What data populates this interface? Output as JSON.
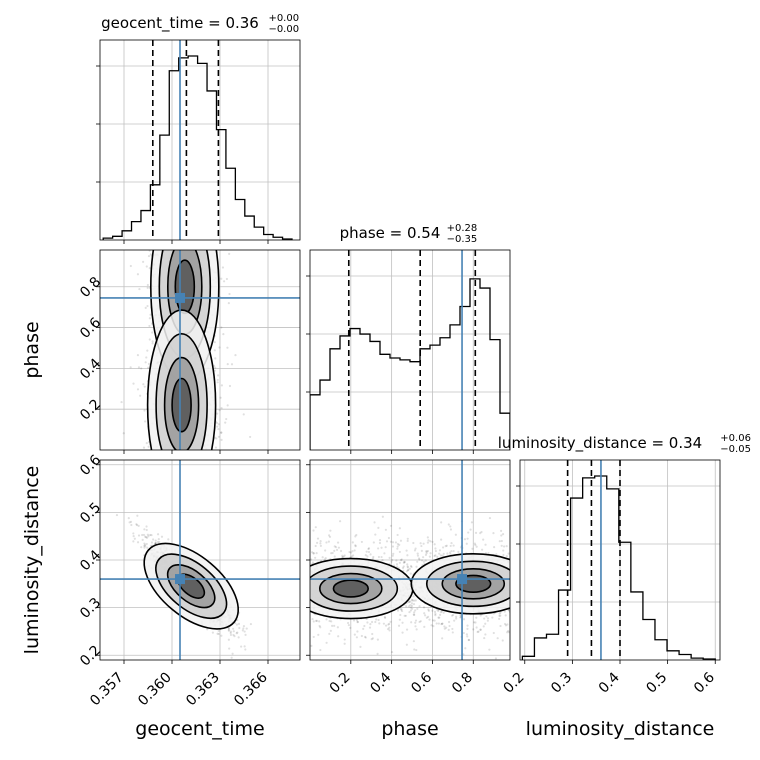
{
  "chart_data": {
    "type": "corner",
    "parameters": [
      "geocent_time",
      "phase",
      "luminosity_distance"
    ],
    "colors": {
      "truth": "#4682b4",
      "hist": "#000000",
      "grid": "#c0c0c0",
      "quantile": "#000000"
    },
    "truths": {
      "geocent_time": 0.3605,
      "phase": 0.745,
      "luminosity_distance": 0.36
    },
    "ranges": {
      "geocent_time": [
        0.3555,
        0.368
      ],
      "phase": [
        0.0,
        0.98
      ],
      "luminosity_distance": [
        0.19,
        0.61
      ]
    },
    "ticks": {
      "geocent_time": {
        "values": [
          0.357,
          0.36,
          0.363,
          0.366
        ],
        "labels": [
          "0.357",
          "0.360",
          "0.363",
          "0.366"
        ]
      },
      "phase": {
        "values": [
          0.2,
          0.4,
          0.6,
          0.8
        ],
        "labels": [
          "0.2",
          "0.4",
          "0.6",
          "0.8"
        ]
      },
      "luminosity_distance": {
        "values": [
          0.2,
          0.3,
          0.4,
          0.5,
          0.6
        ],
        "labels": [
          "0.2",
          "0.3",
          "0.4",
          "0.5",
          "0.6"
        ]
      }
    },
    "axis_labels": {
      "geocent_time": "geocent_time",
      "phase": "phase",
      "luminosity_distance": "luminosity_distance"
    },
    "titles": {
      "geocent_time": {
        "main": "geocent_time = 0.36",
        "sup": "+0.00",
        "sub": "−0.00"
      },
      "phase": {
        "main": "phase = 0.54",
        "sup": "+0.28",
        "sub": "−0.35"
      },
      "luminosity_distance": {
        "main": "luminosity_distance = 0.34",
        "sup": "+0.06",
        "sub": "−0.05"
      }
    },
    "quantiles": {
      "geocent_time": [
        0.3588,
        0.3609,
        0.3629
      ],
      "phase": [
        0.19,
        0.54,
        0.81
      ],
      "luminosity_distance": [
        0.29,
        0.34,
        0.4
      ]
    },
    "histograms": {
      "geocent_time": [
        0.01,
        0.02,
        0.05,
        0.1,
        0.16,
        0.3,
        0.57,
        0.92,
        0.99,
        1.0,
        0.96,
        0.81,
        0.6,
        0.39,
        0.22,
        0.13,
        0.07,
        0.03,
        0.015,
        0.005
      ],
      "phase": [
        0.3,
        0.38,
        0.55,
        0.62,
        0.66,
        0.63,
        0.59,
        0.52,
        0.5,
        0.49,
        0.48,
        0.55,
        0.57,
        0.61,
        0.68,
        0.78,
        0.93,
        0.88,
        0.6,
        0.2
      ],
      "luminosity_distance": [
        0.02,
        0.12,
        0.14,
        0.38,
        0.88,
        0.99,
        1.0,
        0.93,
        0.64,
        0.37,
        0.22,
        0.11,
        0.05,
        0.03,
        0.01,
        0.005
      ]
    },
    "joint_modes": [
      {
        "x": "geocent_time",
        "y": "phase",
        "centers": [
          {
            "x": 0.3608,
            "y": 0.8
          },
          {
            "x": 0.3606,
            "y": 0.22
          }
        ]
      },
      {
        "x": "geocent_time",
        "y": "luminosity_distance",
        "centers": [
          {
            "x": 0.3612,
            "y": 0.345
          }
        ]
      },
      {
        "x": "phase",
        "y": "luminosity_distance",
        "centers": [
          {
            "x": 0.2,
            "y": 0.34
          },
          {
            "x": 0.8,
            "y": 0.35
          }
        ]
      }
    ]
  }
}
